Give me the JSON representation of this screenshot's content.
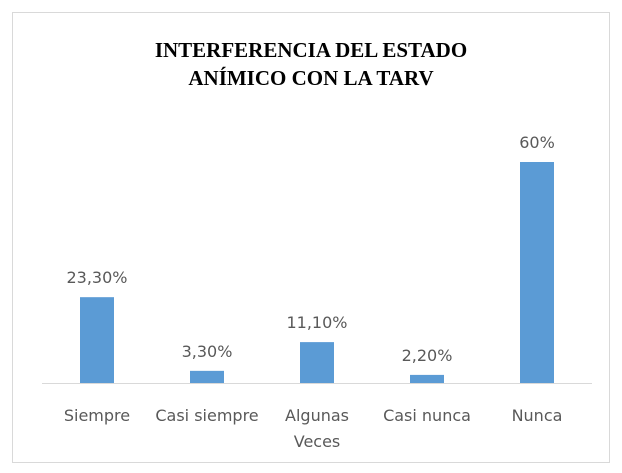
{
  "chart_data": {
    "type": "bar",
    "title": "INTERFERENCIA DEL ESTADO ANÍMICO CON LA TARV",
    "categories": [
      "Siempre",
      "Casi siempre",
      "Algunas Veces",
      "Casi nunca",
      "Nunca"
    ],
    "values": [
      23.3,
      3.3,
      11.1,
      2.2,
      60
    ],
    "value_labels": [
      "23,30%",
      "3,30%",
      "11,10%",
      "2,20%",
      "60%"
    ],
    "color": "#5b9bd5"
  }
}
